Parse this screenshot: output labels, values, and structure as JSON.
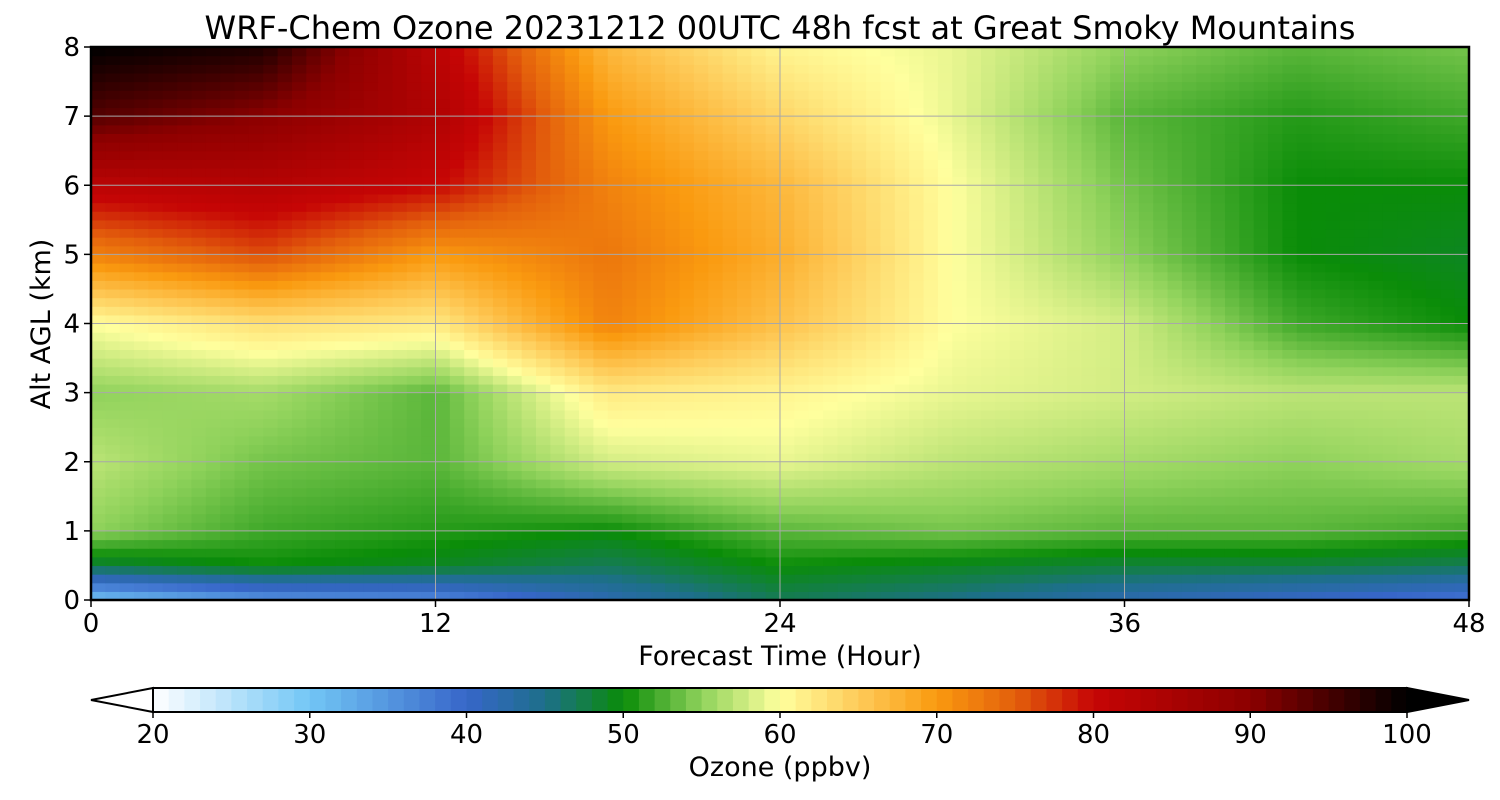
{
  "chart_data": {
    "type": "heatmap",
    "title": "WRF-Chem Ozone  20231212 00UTC 48h fcst at Great Smoky Mountains",
    "xlabel": "Forecast Time (Hour)",
    "ylabel": "Alt AGL (km)",
    "xlim": [
      0,
      48
    ],
    "ylim": [
      0,
      8
    ],
    "x_ticks": [
      0,
      12,
      24,
      36,
      48
    ],
    "y_ticks": [
      0,
      1,
      2,
      3,
      4,
      5,
      6,
      7,
      8
    ],
    "grid": true,
    "x": [
      0,
      6,
      12,
      18,
      24,
      30,
      36,
      42,
      48
    ],
    "y": [
      0,
      0.5,
      1,
      2,
      3,
      4,
      5,
      6,
      7,
      8
    ],
    "z": [
      [
        30,
        35,
        36,
        42,
        47,
        45,
        42,
        40,
        38
      ],
      [
        48,
        50,
        49,
        47,
        50,
        49,
        48,
        48,
        47
      ],
      [
        55,
        52,
        51,
        50,
        53,
        54,
        53,
        53,
        52
      ],
      [
        57,
        54,
        53,
        58,
        59,
        57,
        56,
        55,
        56
      ],
      [
        55,
        56,
        53,
        62,
        61,
        59,
        58,
        57,
        57
      ],
      [
        60,
        63,
        62,
        72,
        66,
        60,
        58,
        52,
        50
      ],
      [
        72,
        76,
        70,
        73,
        68,
        60,
        55,
        50,
        49
      ],
      [
        82,
        83,
        80,
        72,
        67,
        60,
        54,
        50,
        50
      ],
      [
        94,
        90,
        84,
        70,
        64,
        59,
        53,
        51,
        52
      ],
      [
        100,
        98,
        82,
        67,
        61,
        59,
        55,
        53,
        54
      ]
    ],
    "colorbar": {
      "label": "Ozone  (ppbv)",
      "min": 20,
      "max": 100,
      "ticks": [
        20,
        30,
        40,
        50,
        60,
        70,
        80,
        90,
        100
      ],
      "extend": "both",
      "stops": [
        {
          "v": 20,
          "c": "#ffffff"
        },
        {
          "v": 30,
          "c": "#72c6f5"
        },
        {
          "v": 40,
          "c": "#3766c9"
        },
        {
          "v": 45,
          "c": "#1d6f8a"
        },
        {
          "v": 50,
          "c": "#0a8c08"
        },
        {
          "v": 55,
          "c": "#8fd25b"
        },
        {
          "v": 60,
          "c": "#ffff9e"
        },
        {
          "v": 65,
          "c": "#fecb59"
        },
        {
          "v": 70,
          "c": "#fa9a0f"
        },
        {
          "v": 75,
          "c": "#e35f0c"
        },
        {
          "v": 80,
          "c": "#c60505"
        },
        {
          "v": 90,
          "c": "#8c0000"
        },
        {
          "v": 100,
          "c": "#000000"
        }
      ]
    }
  }
}
